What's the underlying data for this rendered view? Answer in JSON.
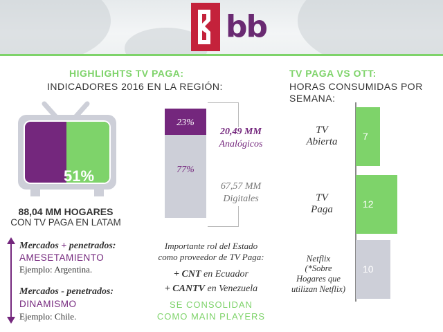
{
  "logo": {
    "text": "bb",
    "brand_color": "#c4223b"
  },
  "colors": {
    "purple": "#74277d",
    "green": "#7ed36a",
    "gray": "#cdcfd8"
  },
  "left": {
    "heading": "HIGHLIGHTS TV PAGA:",
    "subheading": "INDICADORES 2016 EN LA REGIÓN:",
    "tv_percent": "51%",
    "tv_share": 0.51,
    "hogares_bold": "88,04 MM HOGARES",
    "hogares_sub": "CON TV PAGA EN LATAM",
    "stack": {
      "top_pct": "23%",
      "bottom_pct": "77%",
      "top_value": "20,49 MM",
      "top_label": "Analógicos",
      "bottom_value": "67,57 MM",
      "bottom_label": "Digitales"
    },
    "markets": {
      "m1_a": "Mercados",
      "m1_plus": "+",
      "m1_b": "penetrados:",
      "m1_word": "AMESETAMIENTO",
      "m1_example": "Ejemplo: Argentina.",
      "m2_title": "Mercados - penetrados:",
      "m2_word": "DINAMISMO",
      "m2_example": "Ejemplo: Chile."
    },
    "state": {
      "line1": "Importante rol del Estado",
      "line2": "como proveedor de TV Paga:",
      "p1_bold": "+ CNT",
      "p1_rest": "en Ecuador",
      "p2_bold": "+ CANTV",
      "p2_rest": "en Venezuela",
      "cta1": "SE CONSOLIDAN",
      "cta2": "COMO MAIN PLAYERS"
    }
  },
  "right": {
    "heading": "TV PAGA VS OTT:",
    "sub1": "HORAS CONSUMIDAS POR",
    "sub2": "SEMANA:"
  },
  "chart_data": {
    "type": "bar",
    "orientation": "horizontal",
    "title": "TV PAGA VS OTT: HORAS CONSUMIDAS POR SEMANA:",
    "categories": [
      {
        "l1": "TV",
        "l2": "Abierta",
        "l3": "",
        "l4": ""
      },
      {
        "l1": "TV",
        "l2": "Paga",
        "l3": "",
        "l4": ""
      },
      {
        "l1": "Netflix",
        "l2": "(*Sobre",
        "l3": "Hogares que",
        "l4": "utilizan Netflix)"
      }
    ],
    "values": [
      7,
      12,
      10
    ],
    "labels": [
      "7",
      "12",
      "10"
    ],
    "colors": [
      "#7ed36a",
      "#7ed36a",
      "#cdcfd8"
    ],
    "xlim": [
      0,
      12
    ]
  }
}
